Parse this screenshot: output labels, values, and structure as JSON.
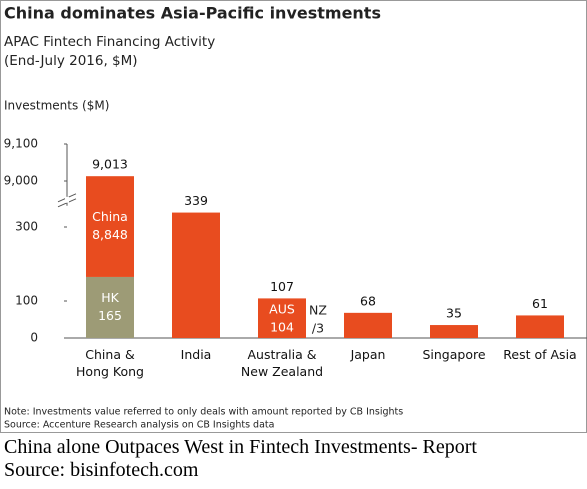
{
  "chart_data": {
    "type": "stacked-bar",
    "title": "China dominates Asia-Pacific investments",
    "subtitle": [
      "APAC Fintech Financing Activity",
      "(End-July 2016, $M)"
    ],
    "ylabel": "Investments ($M)",
    "categories": [
      "China &\nHong Kong",
      "India",
      "Australia &\nNew Zealand",
      "Japan",
      "Singapore",
      "Rest of Asia"
    ],
    "series": [
      {
        "color": "#e84c1f",
        "values": [
          null,
          339,
          null,
          68,
          35,
          61
        ]
      },
      {
        "name": "HK",
        "color": "#9d9b76",
        "values": [
          165,
          null,
          null,
          null,
          null,
          null
        ],
        "value_labels": [
          "165",
          null,
          null,
          null,
          null,
          null
        ]
      },
      {
        "name": "China",
        "color": "#e84c1f",
        "values": [
          8848,
          null,
          null,
          null,
          null,
          null
        ],
        "value_labels": [
          "8,848",
          null,
          null,
          null,
          null,
          null
        ]
      },
      {
        "name": "AUS",
        "color": "#e84c1f",
        "values": [
          null,
          null,
          104,
          null,
          null,
          null
        ],
        "value_labels": [
          null,
          null,
          "104",
          null,
          null,
          null
        ]
      },
      {
        "name": "NZ",
        "color": "#e84c1f",
        "values": [
          null,
          null,
          3,
          null,
          null,
          null
        ],
        "value_labels": [
          null,
          null,
          "/3",
          null,
          null,
          null
        ]
      }
    ],
    "totals": [
      9013,
      339,
      107,
      68,
      35,
      61
    ],
    "total_labels": [
      "9,013",
      "339",
      "107",
      "68",
      "35",
      "61"
    ],
    "ylim": [
      0,
      9100
    ],
    "axis_break": [
      360,
      8960
    ],
    "yticks": [
      0,
      100,
      300,
      {
        "value": 9000,
        "label": "9,000"
      },
      {
        "value": 9100,
        "label": "9,100"
      }
    ],
    "notes": [
      "Note: Investments value referred to only deals with amount reported by CB Insights",
      "Source: Accenture Research analysis on CB Insights data"
    ]
  },
  "caption": [
    "China alone Outpaces West in Fintech Investments- Report",
    "Source: bisinfotech.com"
  ]
}
